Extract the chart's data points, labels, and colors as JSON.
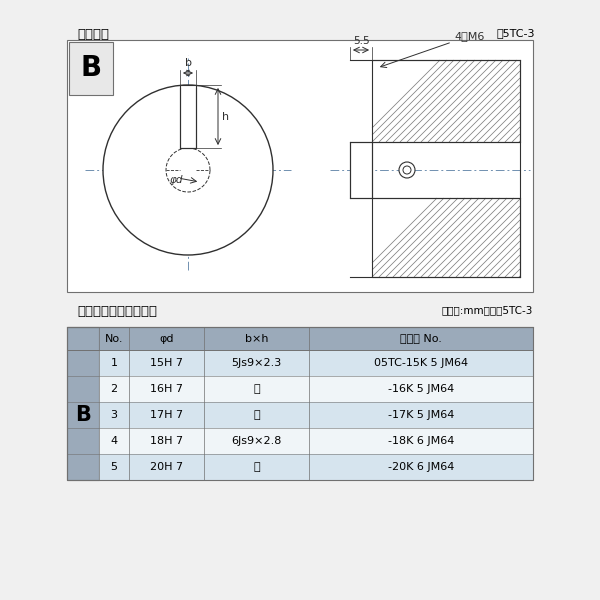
{
  "title_diagram": "軸穴形状",
  "fig_label": "図5TC-3",
  "table_title": "軸穴形状コード一覧表",
  "table_unit": "（単位:mm）　表5TC-3",
  "bg_color": "#f0f0f0",
  "diagram_bg": "#ffffff",
  "table_header_bg": "#9baaba",
  "table_row_bg_light": "#d6e4ee",
  "table_row_bg_white": "#eef4f8",
  "table_border": "#707070",
  "label_B": "B",
  "dim_b": "b",
  "dim_h": "h",
  "dim_phi": "φd",
  "dim_55": "5.5",
  "dim_4M6": "4－M6",
  "header": [
    "No.",
    "φd",
    "b×h",
    "コード No."
  ],
  "rows": [
    [
      "1",
      "15H 7",
      "5Js9×2.3",
      "05TC-15K 5 JM64"
    ],
    [
      "2",
      "16H 7",
      "〃",
      "-16K 5 JM64"
    ],
    [
      "3",
      "17H 7",
      "〃",
      "-17K 5 JM64"
    ],
    [
      "4",
      "18H 7",
      "6Js9×2.8",
      "-18K 6 JM64"
    ],
    [
      "5",
      "20H 7",
      "〃",
      "-20K 6 JM64"
    ]
  ],
  "col_B_label": "B"
}
